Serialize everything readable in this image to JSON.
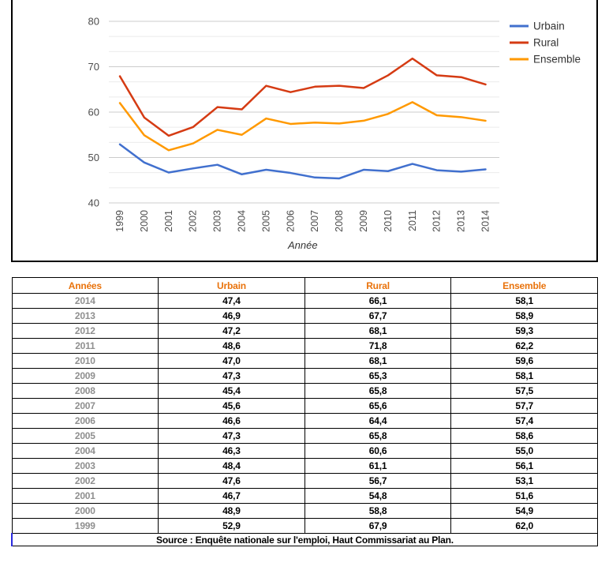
{
  "chart": {
    "x_axis_title": "Année",
    "y_tick_labels": [
      "40",
      "50",
      "60",
      "70",
      "80"
    ],
    "legend": [
      {
        "label": "Urbain",
        "color": "#4170ce"
      },
      {
        "label": "Rural",
        "color": "#d53b13"
      },
      {
        "label": "Ensemble",
        "color": "#ff9900"
      }
    ],
    "colors": {
      "major_gridline": "#cccccc",
      "minor_gridline": "#ebebeb",
      "tick_text": "#4d4d4d",
      "legend_text": "#333333",
      "axis_title_text": "#333333"
    }
  },
  "chart_data": {
    "type": "line",
    "x": [
      1999,
      2000,
      2001,
      2002,
      2003,
      2004,
      2005,
      2006,
      2007,
      2008,
      2009,
      2010,
      2011,
      2012,
      2013,
      2014
    ],
    "xlabel": "Année",
    "ylabel": "",
    "ylim": [
      40,
      80
    ],
    "y_ticks": [
      40,
      50,
      60,
      70,
      80
    ],
    "minor_grid_step": 3.3333,
    "grid": true,
    "legend_position": "top-right",
    "series": [
      {
        "name": "Urbain",
        "color": "#4170ce",
        "values": [
          52.9,
          48.9,
          46.7,
          47.6,
          48.4,
          46.3,
          47.3,
          46.6,
          45.6,
          45.4,
          47.3,
          47.0,
          48.6,
          47.2,
          46.9,
          47.4
        ]
      },
      {
        "name": "Rural",
        "color": "#d53b13",
        "values": [
          67.9,
          58.8,
          54.8,
          56.7,
          61.1,
          60.6,
          65.8,
          64.4,
          65.6,
          65.8,
          65.3,
          68.1,
          71.8,
          68.1,
          67.7,
          66.1
        ]
      },
      {
        "name": "Ensemble",
        "color": "#ff9900",
        "values": [
          62.0,
          54.9,
          51.6,
          53.1,
          56.1,
          55.0,
          58.6,
          57.4,
          57.7,
          57.5,
          58.1,
          59.6,
          62.2,
          59.3,
          58.9,
          58.1
        ]
      }
    ]
  },
  "table": {
    "headers": [
      "Années",
      "Urbain",
      "Rural",
      "Ensemble"
    ],
    "rows": [
      [
        "2014",
        "47,4",
        "66,1",
        "58,1"
      ],
      [
        "2013",
        "46,9",
        "67,7",
        "58,9"
      ],
      [
        "2012",
        "47,2",
        "68,1",
        "59,3"
      ],
      [
        "2011",
        "48,6",
        "71,8",
        "62,2"
      ],
      [
        "2010",
        "47,0",
        "68,1",
        "59,6"
      ],
      [
        "2009",
        "47,3",
        "65,3",
        "58,1"
      ],
      [
        "2008",
        "45,4",
        "65,8",
        "57,5"
      ],
      [
        "2007",
        "45,6",
        "65,6",
        "57,7"
      ],
      [
        "2006",
        "46,6",
        "64,4",
        "57,4"
      ],
      [
        "2005",
        "47,3",
        "65,8",
        "58,6"
      ],
      [
        "2004",
        "46,3",
        "60,6",
        "55,0"
      ],
      [
        "2003",
        "48,4",
        "61,1",
        "56,1"
      ],
      [
        "2002",
        "47,6",
        "56,7",
        "53,1"
      ],
      [
        "2001",
        "46,7",
        "54,8",
        "51,6"
      ],
      [
        "2000",
        "48,9",
        "58,8",
        "54,9"
      ],
      [
        "1999",
        "52,9",
        "67,9",
        "62,0"
      ]
    ],
    "source": "Source : Enquête nationale sur l'emploi, Haut Commissariat au Plan."
  }
}
